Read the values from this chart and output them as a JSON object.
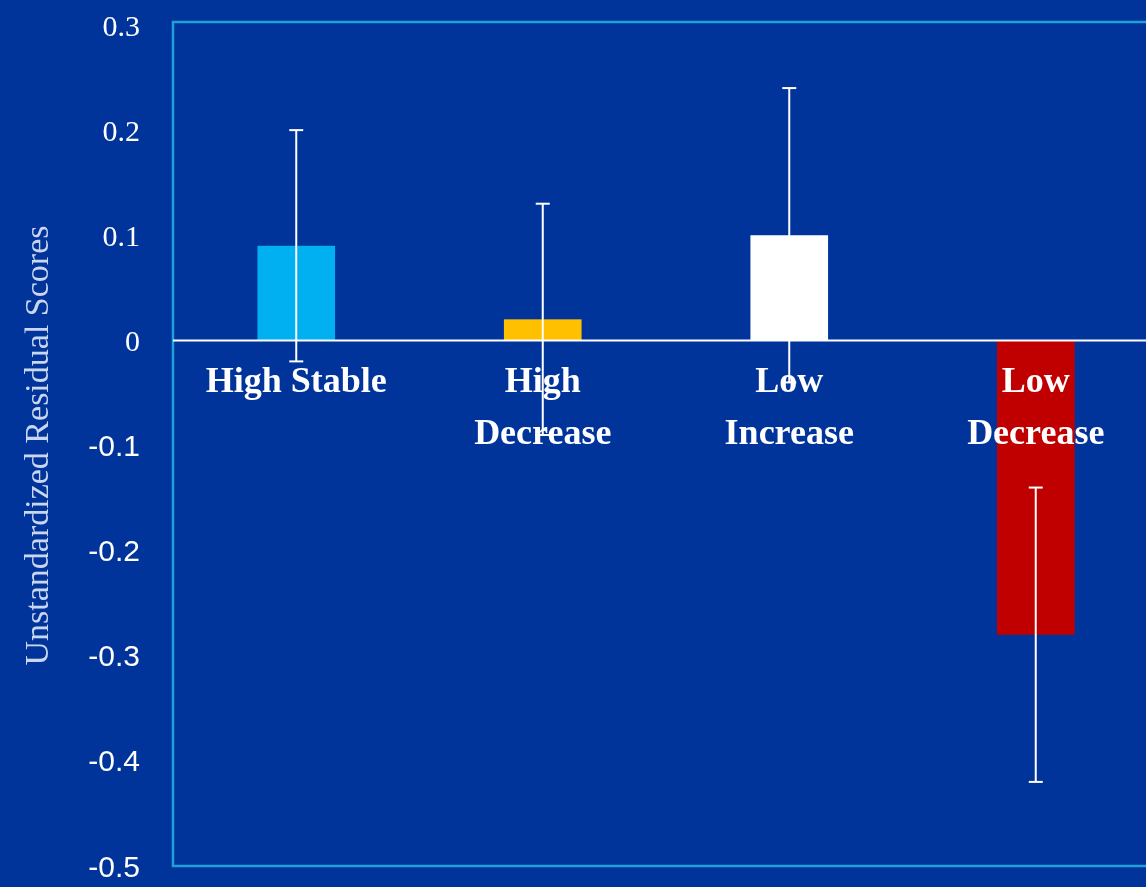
{
  "chart_data": {
    "type": "bar",
    "ylabel": "Unstandardized Residual Scores",
    "categories": [
      "High Stable",
      "High Decrease",
      "Low Increase",
      "Low Decrease"
    ],
    "values": [
      0.09,
      0.02,
      0.1,
      -0.28
    ],
    "colors": [
      "#00b0f0",
      "#ffc000",
      "#ffffff",
      "#c00000"
    ],
    "errors": [
      0.11,
      0.11,
      0.14,
      0.14
    ],
    "ylim": [
      -0.5,
      0.3
    ],
    "yticks": [
      -0.5,
      -0.4,
      -0.3,
      -0.2,
      -0.1,
      0,
      0.1,
      0.2,
      0.3
    ],
    "grid": false
  }
}
